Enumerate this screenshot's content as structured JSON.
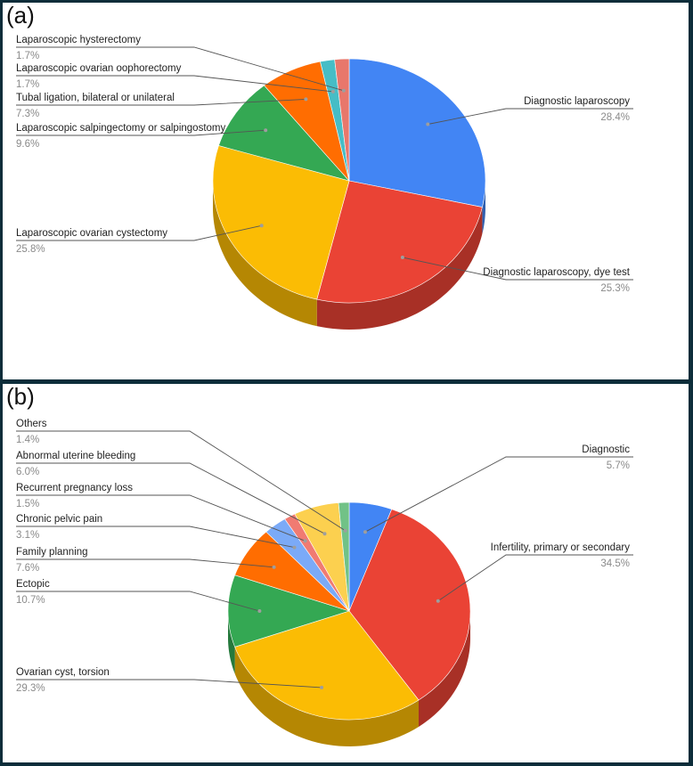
{
  "chart_data": [
    {
      "panel_label": "(a)",
      "type": "pie",
      "labels": [
        "Diagnostic laparoscopy",
        "Diagnostic laparoscopy, dye test",
        "Laparoscopic ovarian cystectomy",
        "Laparoscopic salpingectomy or salpingostomy",
        "Tubal ligation, bilateral or unilateral",
        "Laparoscopic ovarian oophorectomy",
        "Laparoscopic hysterectomy"
      ],
      "values": [
        28.4,
        25.3,
        25.8,
        9.6,
        7.3,
        1.7,
        1.7
      ],
      "value_labels": [
        "28.4%",
        "25.3%",
        "25.8%",
        "9.6%",
        "7.3%",
        "1.7%",
        "1.7%"
      ],
      "colors": [
        "#4285f4",
        "#ea4335",
        "#fbbc04",
        "#34a853",
        "#ff6d01",
        "#46bdc6",
        "#e8776b"
      ],
      "style": "3d"
    },
    {
      "panel_label": "(b)",
      "type": "pie",
      "labels": [
        "Diagnostic",
        "Infertility, primary or secondary",
        "Ovarian cyst, torsion",
        "Ectopic",
        "Family planning",
        "Chronic pelvic pain",
        "Recurrent pregnancy loss",
        "Abnormal uterine bleeding",
        "Others"
      ],
      "values": [
        5.7,
        34.5,
        29.3,
        10.7,
        7.6,
        3.1,
        1.5,
        6.0,
        1.4
      ],
      "value_labels": [
        "5.7%",
        "34.5%",
        "29.3%",
        "10.7%",
        "7.6%",
        "3.1%",
        "1.5%",
        "6.0%",
        "1.4%"
      ],
      "colors": [
        "#4285f4",
        "#ea4335",
        "#fbbc04",
        "#34a853",
        "#ff6d01",
        "#7baaf7",
        "#f07b72",
        "#fcd04f",
        "#71c287"
      ],
      "style": "3d"
    }
  ]
}
